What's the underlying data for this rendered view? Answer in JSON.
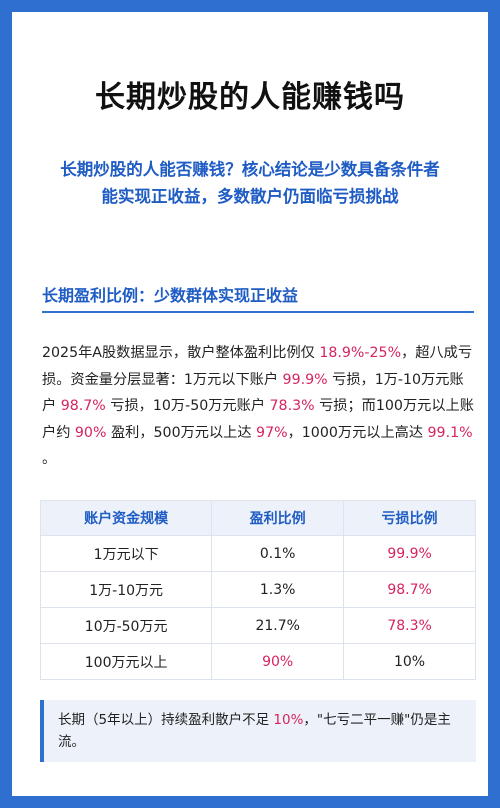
{
  "title": "长期炒股的人能赚钱吗",
  "subtitle": "长期炒股的人能否赚钱？核心结论是少数具备条件者能实现正收益，多数散户仍面临亏损挑战",
  "section": {
    "heading": "长期盈利比例：少数群体实现正收益"
  },
  "paragraph": {
    "p1": "2025年A股数据显示，散户整体盈利比例仅 ",
    "v1": "18.9%-25%",
    "p2": "，超八成亏损。资金量分层显著：1万元以下账户 ",
    "v2": "99.9%",
    "p3": " 亏损，1万-10万元账户 ",
    "v3": "98.7%",
    "p4": " 亏损，10万-50万元账户 ",
    "v4": "78.3%",
    "p5": " 亏损；而100万元以上账户约 ",
    "v5": "90%",
    "p6": " 盈利，500万元以上达 ",
    "v6": "97%",
    "p7": "，1000万元以上高达 ",
    "v7": "99.1%",
    "p8": " 。"
  },
  "table": {
    "headers": [
      "账户资金规模",
      "盈利比例",
      "亏损比例"
    ],
    "rows": [
      [
        "1万元以下",
        "0.1%",
        "99.9%"
      ],
      [
        "1万-10万元",
        "1.3%",
        "98.7%"
      ],
      [
        "10万-50万元",
        "21.7%",
        "78.3%"
      ],
      [
        "100万元以上",
        "90%",
        "10%"
      ]
    ],
    "highlight_color": "#d6245d"
  },
  "note": {
    "p1": "长期（5年以上）持续盈利散户不足 ",
    "v1": "10%",
    "p2": "，\"七亏二平一赚\"仍是主流。"
  },
  "colors": {
    "background": "#2f6fd0",
    "accent": "#1f5cc4",
    "highlight": "#d6245d"
  }
}
